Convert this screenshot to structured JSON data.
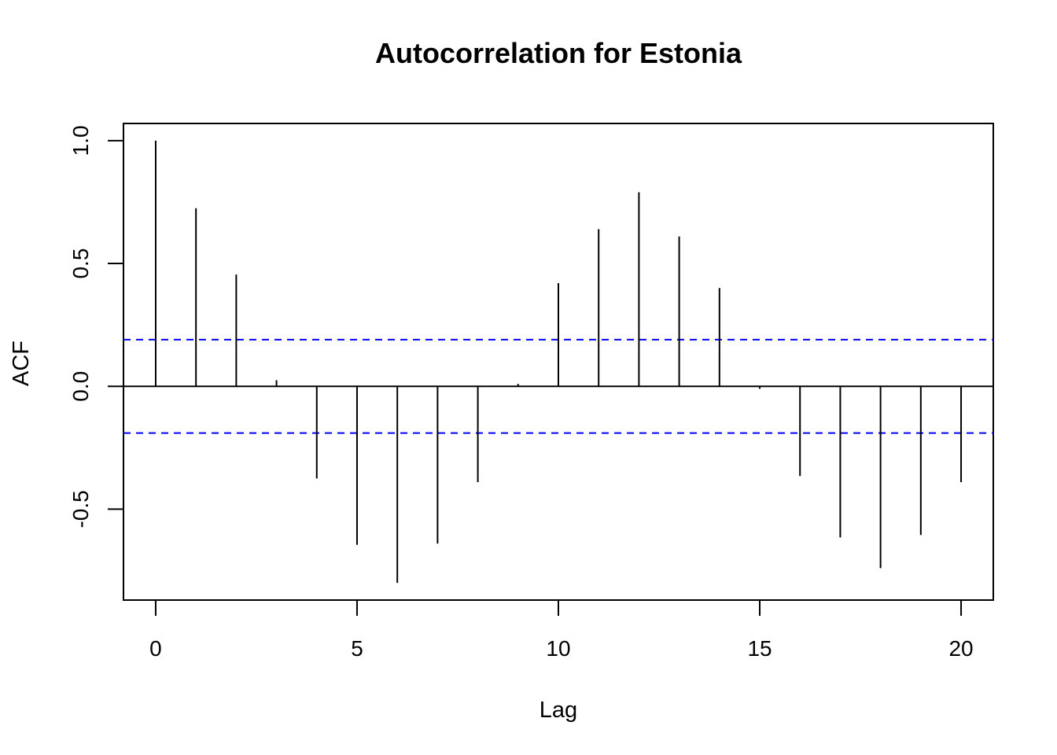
{
  "chart_data": {
    "type": "bar",
    "title": "Autocorrelation for Estonia",
    "xlabel": "Lag",
    "ylabel": "ACF",
    "x": [
      0,
      1,
      2,
      3,
      4,
      5,
      6,
      7,
      8,
      9,
      10,
      11,
      12,
      13,
      14,
      15,
      16,
      17,
      18,
      19,
      20
    ],
    "values": [
      1.0,
      0.725,
      0.455,
      0.025,
      -0.375,
      -0.645,
      -0.8,
      -0.64,
      -0.39,
      0.01,
      0.42,
      0.64,
      0.79,
      0.61,
      0.4,
      -0.01,
      -0.365,
      -0.615,
      -0.74,
      -0.605,
      -0.39
    ],
    "confidence_bound": 0.19,
    "xlim": [
      -0.8,
      20.8
    ],
    "ylim": [
      -0.87,
      1.07
    ],
    "xticks": [
      0,
      5,
      10,
      15,
      20
    ],
    "xtick_labels": [
      "0",
      "5",
      "10",
      "15",
      "20"
    ],
    "yticks": [
      -0.5,
      0.0,
      0.5,
      1.0
    ],
    "ytick_labels": [
      "-0.5",
      "0.0",
      "0.5",
      "1.0"
    ],
    "grid": false,
    "colors": {
      "bars": "#000000",
      "confidence": "#0000ff",
      "zero_line": "#000000"
    }
  }
}
